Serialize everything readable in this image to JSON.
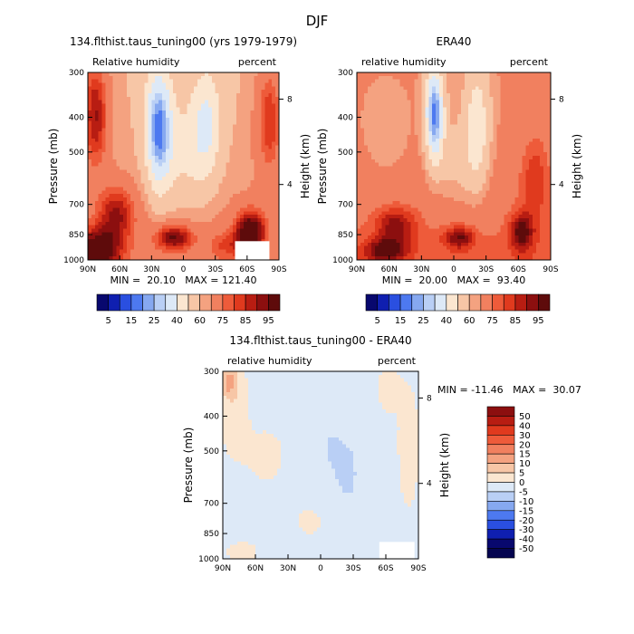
{
  "figure": {
    "title": "DJF"
  },
  "chart_data": [
    {
      "type": "heatmap",
      "title": "134.flthist.taus_tuning00 (yrs 1979-1979)",
      "left_label": "Relative humidity",
      "right_label": "percent",
      "xlabel": "",
      "ylabel": "Pressure (mb)",
      "y2label": "Height (km)",
      "x_ticks": [
        "90N",
        "60N",
        "30N",
        "0",
        "30S",
        "60S",
        "90S"
      ],
      "y_ticks": [
        "300",
        "400",
        "500",
        "700",
        "850",
        "1000"
      ],
      "y2_ticks": [
        "8",
        "4"
      ],
      "stats": "MIN =  20.10   MAX = 121.40",
      "colorbar": {
        "orientation": "horizontal",
        "labels": [
          "5",
          "15",
          "25",
          "40",
          "60",
          "75",
          "85",
          "95"
        ]
      }
    },
    {
      "type": "heatmap",
      "title": "ERA40",
      "left_label": "relative humidity",
      "right_label": "percent",
      "xlabel": "",
      "ylabel": "Pressure (mb)",
      "y2label": "Height (km)",
      "x_ticks": [
        "90N",
        "60N",
        "30N",
        "0",
        "30S",
        "60S",
        "90S"
      ],
      "y_ticks": [
        "300",
        "400",
        "500",
        "700",
        "850",
        "1000"
      ],
      "y2_ticks": [
        "8",
        "4"
      ],
      "stats": "MIN =  20.00   MAX =  93.40",
      "colorbar": {
        "orientation": "horizontal",
        "labels": [
          "5",
          "15",
          "25",
          "40",
          "60",
          "75",
          "85",
          "95"
        ]
      }
    },
    {
      "type": "heatmap",
      "title": "134.flthist.taus_tuning00 - ERA40",
      "left_label": "relative humidity",
      "right_label": "percent",
      "xlabel": "",
      "ylabel": "Pressure (mb)",
      "y2label": "Height (km)",
      "x_ticks": [
        "90N",
        "60N",
        "30N",
        "0",
        "30S",
        "60S",
        "90S"
      ],
      "y_ticks": [
        "300",
        "400",
        "500",
        "700",
        "850",
        "1000"
      ],
      "y2_ticks": [
        "8",
        "4"
      ],
      "stats": "MIN = -11.46   MAX =  30.07",
      "colorbar": {
        "orientation": "vertical",
        "labels": [
          "50",
          "40",
          "30",
          "20",
          "15",
          "10",
          "5",
          "0",
          "-5",
          "-10",
          "-15",
          "-20",
          "-30",
          "-40",
          "-50"
        ]
      }
    }
  ],
  "colors": {
    "abs_scale": [
      "#08086e",
      "#0f1fb0",
      "#2a4fe0",
      "#4d79f0",
      "#86a8f0",
      "#b9cff5",
      "#dde9f7",
      "#fbe6d0",
      "#f7c6a6",
      "#f4a280",
      "#f1805f",
      "#ee5b3a",
      "#e03a1e",
      "#b81d12",
      "#8c0f0f",
      "#5e0b0b"
    ],
    "diff_scale": [
      "#8c0f0f",
      "#b81d12",
      "#e03a1e",
      "#ee5b3a",
      "#f1805f",
      "#f4a280",
      "#f7c6a6",
      "#fbe6d0",
      "#dde9f7",
      "#b9cff5",
      "#86a8f0",
      "#4d79f0",
      "#2a4fe0",
      "#0f1fb0",
      "#08086e",
      "#050550"
    ]
  }
}
